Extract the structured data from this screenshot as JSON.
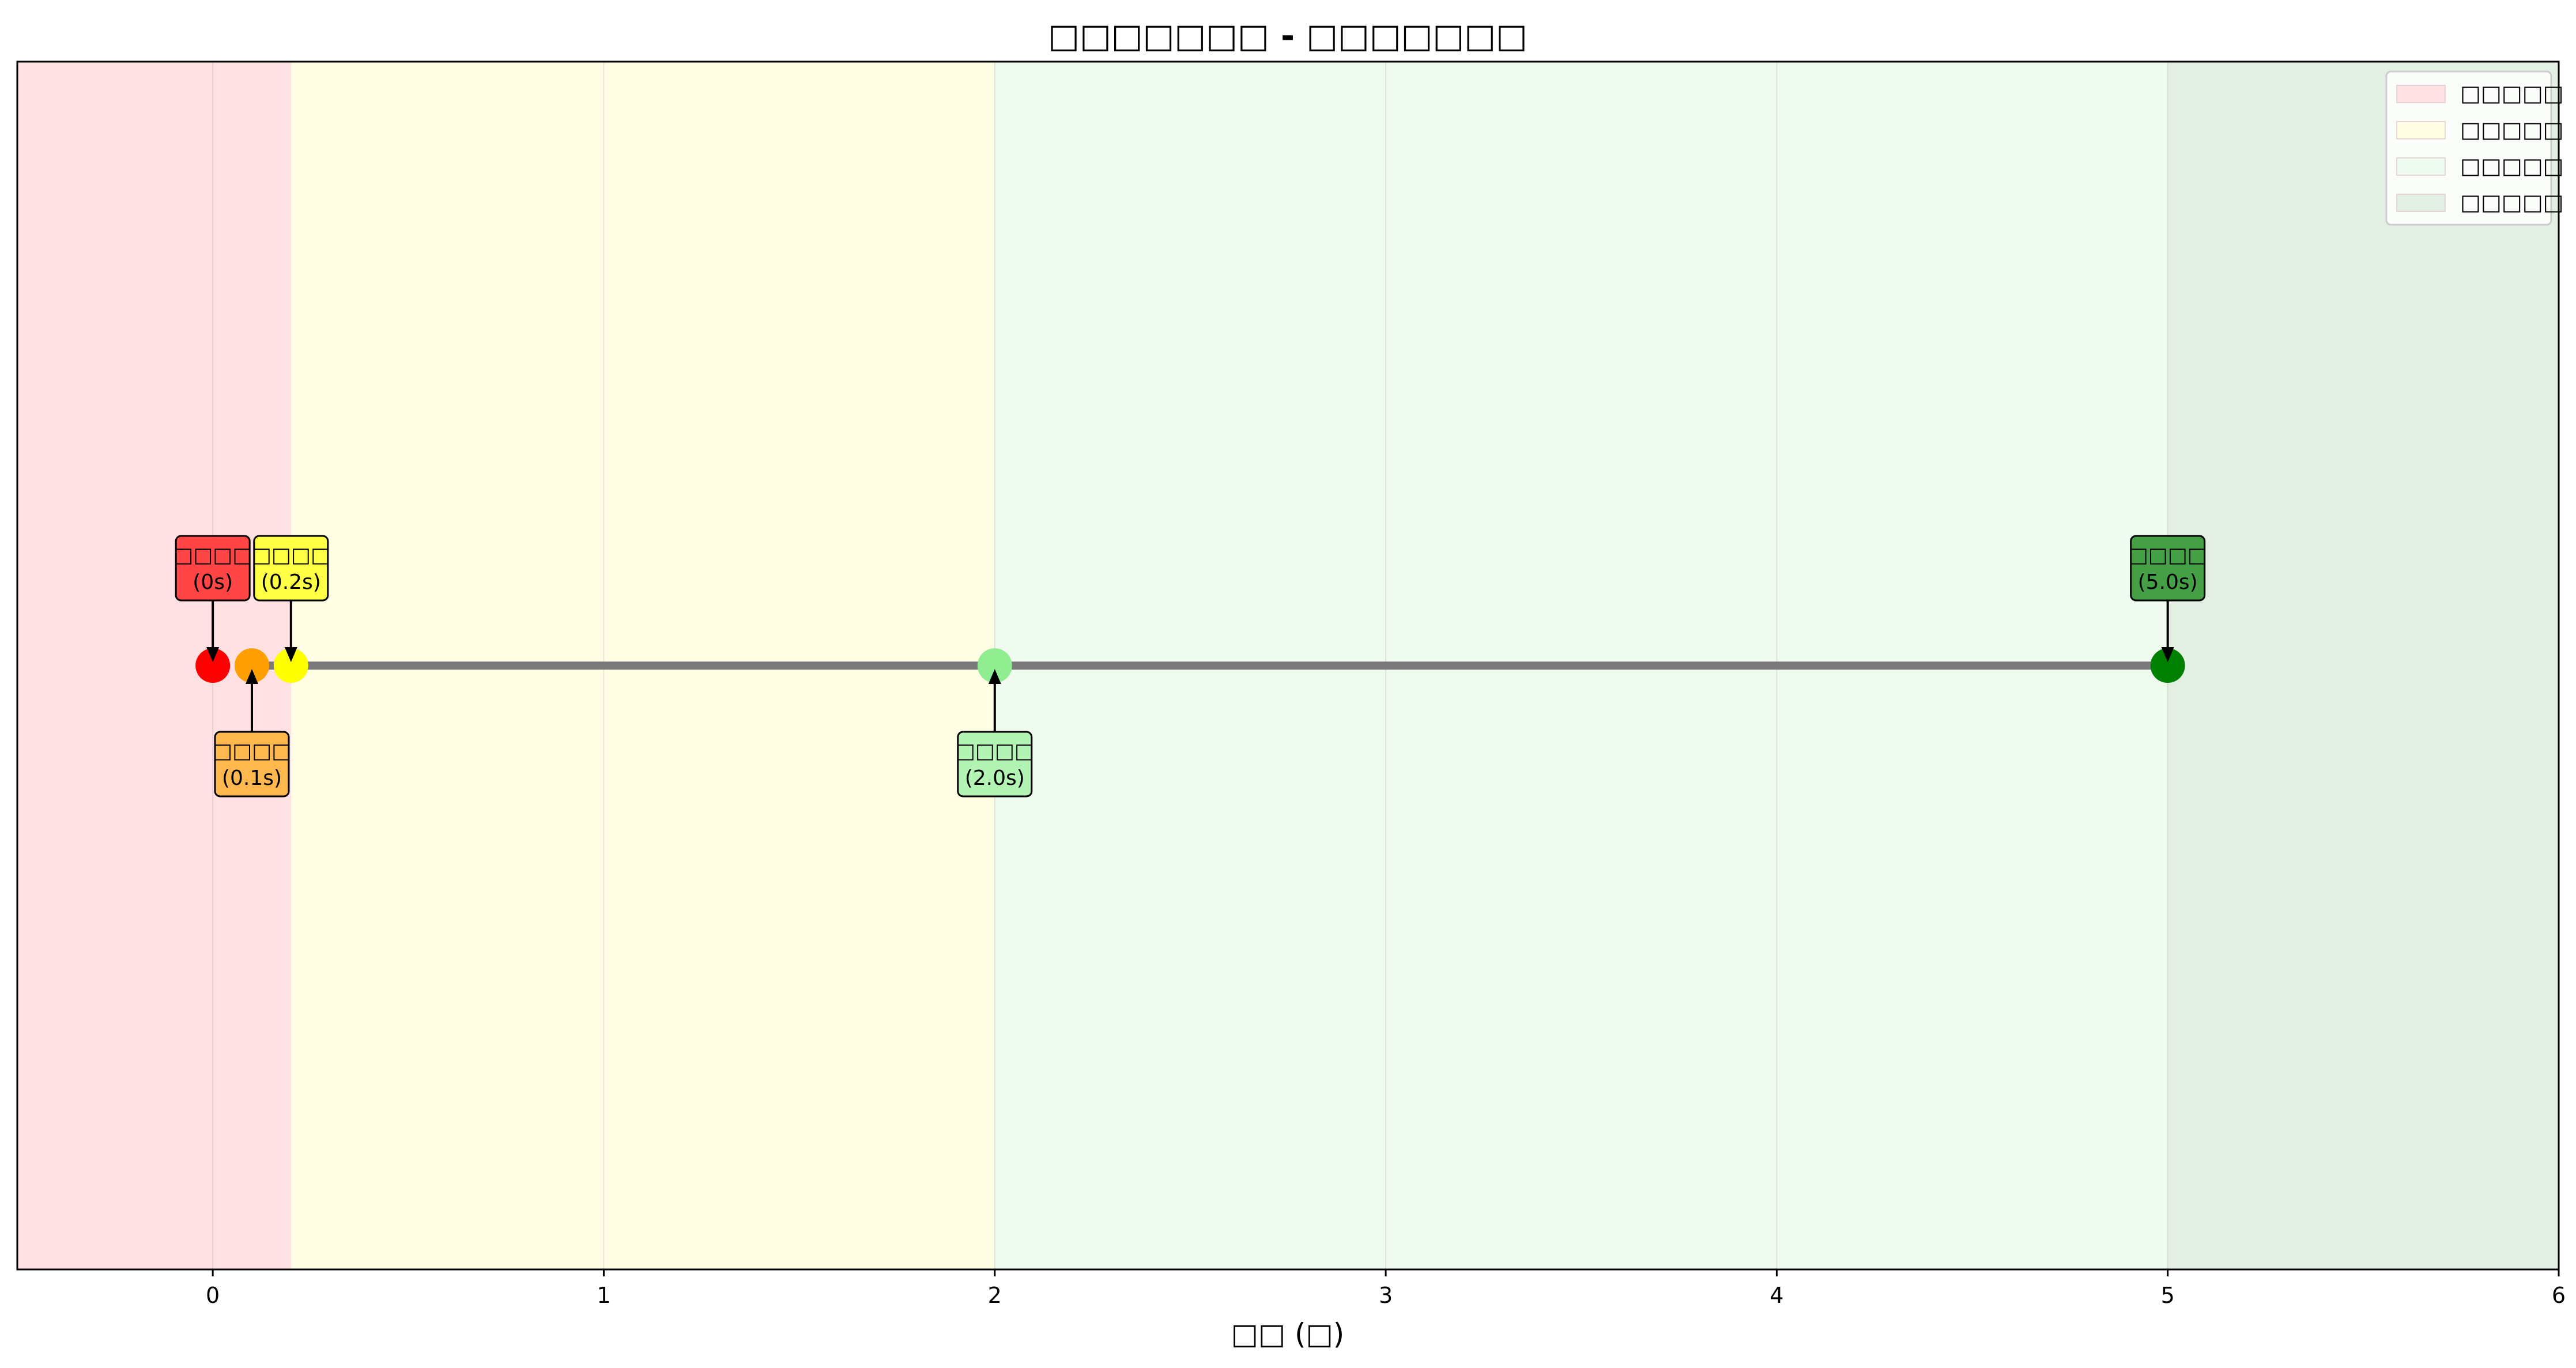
{
  "chart_data": {
    "type": "scatter",
    "title": "□□□□□□□ - □□□□□□□",
    "xlabel": "□□ (□)",
    "ylabel": "",
    "xlim": [
      -0.5,
      6
    ],
    "xticks": [
      0,
      1,
      2,
      3,
      4,
      5,
      6
    ],
    "grid": "vertical",
    "legend_position": "top-right",
    "regions": [
      {
        "name": "□□□□□",
        "x0": -0.5,
        "x1": 0.2,
        "color": "#ffe0e3"
      },
      {
        "name": "□□□□□",
        "x0": 0.2,
        "x1": 2.0,
        "color": "#fffde3"
      },
      {
        "name": "□□□□□",
        "x0": 2.0,
        "x1": 5.0,
        "color": "#f0fbf0"
      },
      {
        "name": "□□□□□",
        "x0": 5.0,
        "x1": 6.0,
        "color": "#e3efe3"
      }
    ],
    "line": {
      "x0": 0.1,
      "x1": 5.0,
      "color": "#7a7a7a"
    },
    "events": [
      {
        "x": 0.0,
        "label": "□□□□",
        "time_label": "(0s)",
        "color": "#ff0000",
        "box_color": "#ff4545",
        "label_side": "above"
      },
      {
        "x": 0.1,
        "label": "□□□□",
        "time_label": "(0.1s)",
        "color": "#ff9f00",
        "box_color": "#ffb84d",
        "label_side": "below"
      },
      {
        "x": 0.2,
        "label": "□□□□",
        "time_label": "(0.2s)",
        "color": "#ffff00",
        "box_color": "#ffff45",
        "label_side": "above"
      },
      {
        "x": 2.0,
        "label": "□□□□",
        "time_label": "(2.0s)",
        "color": "#90ee90",
        "box_color": "#b3f3b3",
        "label_side": "below"
      },
      {
        "x": 5.0,
        "label": "□□□□",
        "time_label": "(5.0s)",
        "color": "#008000",
        "box_color": "#45a045",
        "label_side": "above"
      }
    ]
  }
}
